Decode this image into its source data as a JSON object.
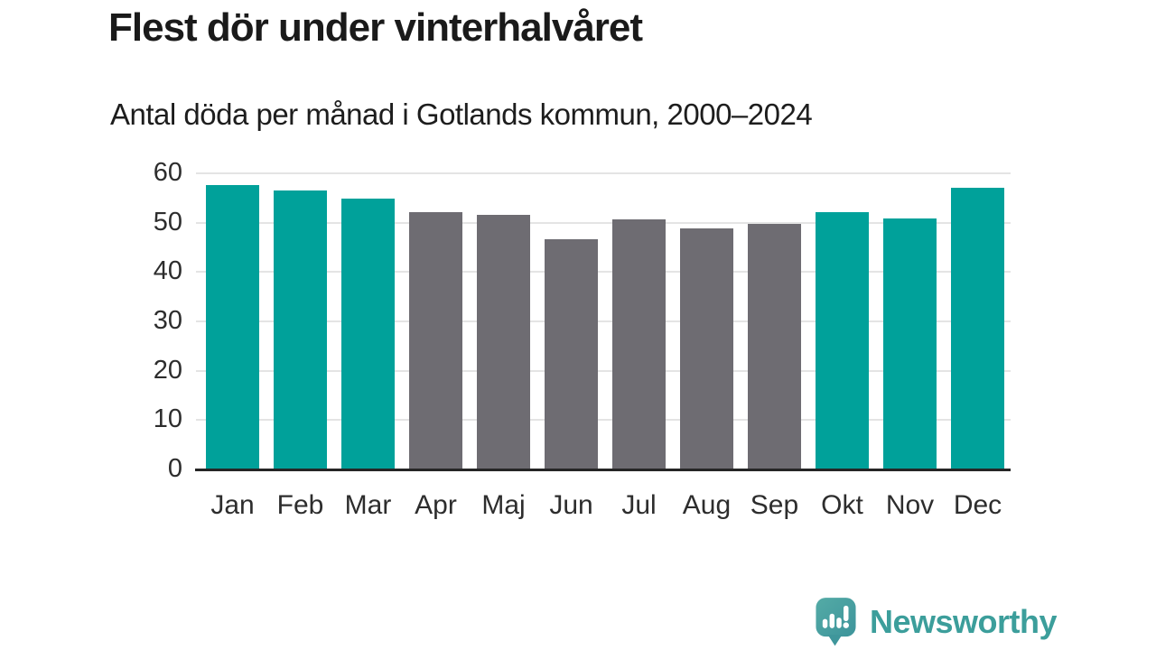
{
  "header": {
    "title": "Flest dör under vinterhalvåret",
    "subtitle": "Antal döda per månad i Gotlands kommun, 2000–2024"
  },
  "chart_data": {
    "type": "bar",
    "title": "Flest dör under vinterhalvåret",
    "subtitle": "Antal döda per månad i Gotlands kommun, 2000–2024",
    "categories": [
      "Jan",
      "Feb",
      "Mar",
      "Apr",
      "Maj",
      "Jun",
      "Jul",
      "Aug",
      "Sep",
      "Okt",
      "Nov",
      "Dec"
    ],
    "values": [
      57.7,
      56.6,
      54.9,
      52.2,
      51.5,
      46.6,
      50.6,
      48.9,
      49.7,
      52.2,
      50.9,
      57.1
    ],
    "groups": [
      "winter",
      "winter",
      "winter",
      "summer",
      "summer",
      "summer",
      "summer",
      "summer",
      "summer",
      "winter",
      "winter",
      "winter"
    ],
    "group_colors": {
      "winter": "#00a19a",
      "summer": "#6e6c72"
    },
    "xlabel": "",
    "ylabel": "",
    "ylim": [
      0,
      60
    ],
    "yticks": [
      0,
      10,
      20,
      30,
      40,
      50,
      60
    ],
    "grid": "horizontal",
    "legend": "none",
    "axis_color": "#262626",
    "gridline_color": "#e4e4e4"
  },
  "footer": {
    "brand": "Newsworthy",
    "brand_color": "#3c9e9b",
    "icon_color": "#48a2a0"
  }
}
